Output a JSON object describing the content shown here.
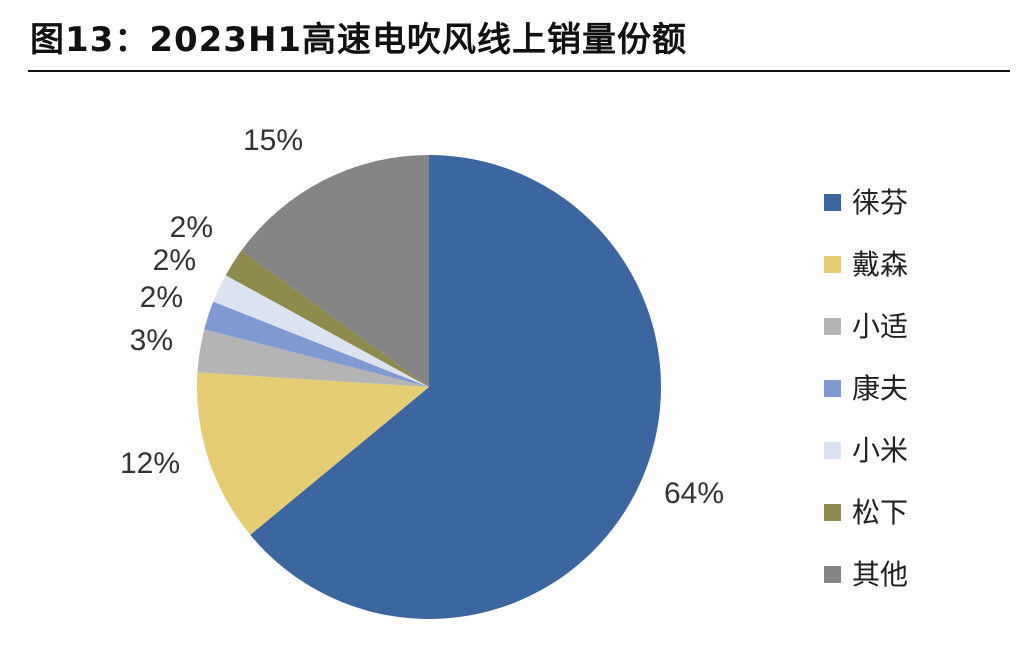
{
  "title": "图13：2023H1高速电吹风线上销量份额",
  "chart_data": {
    "type": "pie",
    "title": "图13：2023H1高速电吹风线上销量份额",
    "legend_position": "right",
    "slices": [
      {
        "name": "徕芬",
        "value": 64,
        "label": "64%",
        "color": "#3C66A0"
      },
      {
        "name": "戴森",
        "value": 12,
        "label": "12%",
        "color": "#E6CD74"
      },
      {
        "name": "小适",
        "value": 3,
        "label": "3%",
        "color": "#B4B4B4"
      },
      {
        "name": "康夫",
        "value": 2,
        "label": "2%",
        "color": "#7F9AD0"
      },
      {
        "name": "小米",
        "value": 2,
        "label": "2%",
        "color": "#DCE3F0"
      },
      {
        "name": "松下",
        "value": 2,
        "label": "2%",
        "color": "#8E8B4C"
      },
      {
        "name": "其他",
        "value": 15,
        "label": "15%",
        "color": "#858585"
      }
    ]
  }
}
